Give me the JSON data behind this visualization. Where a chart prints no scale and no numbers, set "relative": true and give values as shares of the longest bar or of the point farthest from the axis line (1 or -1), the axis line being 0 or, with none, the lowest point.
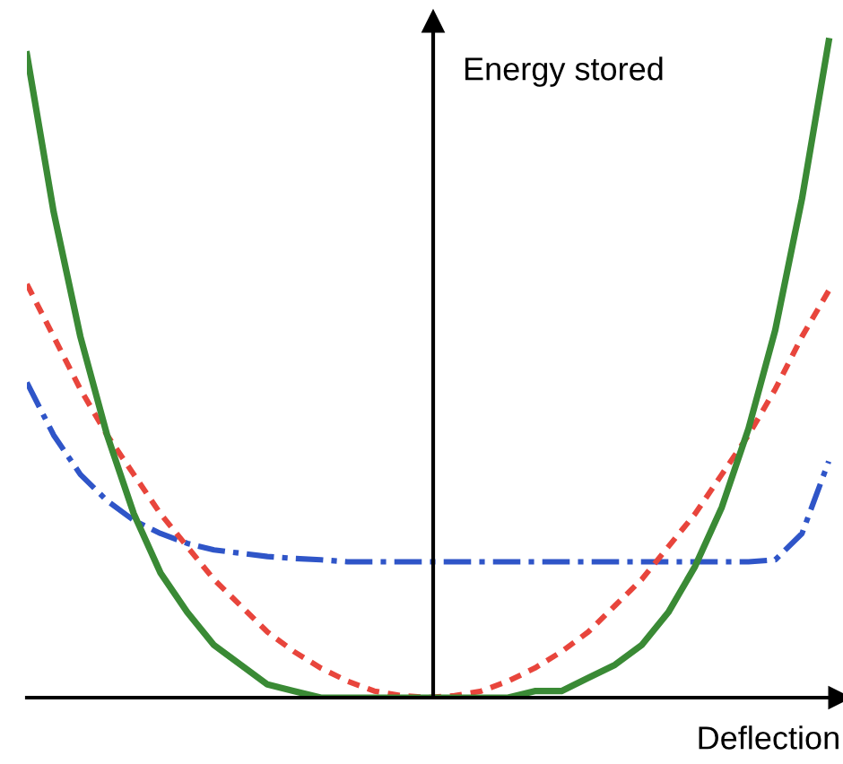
{
  "chart_data": {
    "type": "line",
    "relative": true,
    "xlabel": "Deflection",
    "ylabel": "Energy stored",
    "categories": [
      null,
      null,
      null,
      null,
      null,
      null,
      null,
      null,
      null,
      null,
      null,
      null,
      null,
      null,
      null,
      null,
      null,
      null,
      null,
      null,
      null,
      null,
      null,
      null,
      null,
      null,
      null,
      null,
      null,
      null,
      null
    ],
    "series": [
      {
        "color": "#2f55c8",
        "line_style": "dashdot",
        "values": [
          0.48,
          0.4,
          0.34,
          0.3,
          0.27,
          0.25,
          0.235,
          0.225,
          0.22,
          0.215,
          0.212,
          0.21,
          0.207,
          0.207,
          0.207,
          0.207,
          0.207,
          0.207,
          0.207,
          0.207,
          0.207,
          0.207,
          0.207,
          0.207,
          0.207,
          0.207,
          0.207,
          0.207,
          0.21,
          0.25,
          0.36
        ]
      },
      {
        "color": "#e8453c",
        "line_style": "dashed",
        "values": [
          0.63,
          0.55,
          0.47,
          0.4,
          0.34,
          0.28,
          0.23,
          0.18,
          0.14,
          0.1,
          0.07,
          0.045,
          0.025,
          0.01,
          0.003,
          0,
          0.003,
          0.01,
          0.025,
          0.045,
          0.07,
          0.1,
          0.14,
          0.18,
          0.23,
          0.28,
          0.34,
          0.4,
          0.47,
          0.55,
          0.62
        ]
      },
      {
        "color": "#3a8a35",
        "line_style": "solid",
        "values": [
          0.98,
          0.74,
          0.55,
          0.4,
          0.28,
          0.19,
          0.13,
          0.08,
          0.05,
          0.02,
          0.01,
          0,
          0,
          0,
          0,
          0,
          0,
          0,
          0,
          0.01,
          0.01,
          0.03,
          0.05,
          0.08,
          0.13,
          0.2,
          0.29,
          0.41,
          0.56,
          0.76,
          1.0
        ]
      }
    ]
  }
}
